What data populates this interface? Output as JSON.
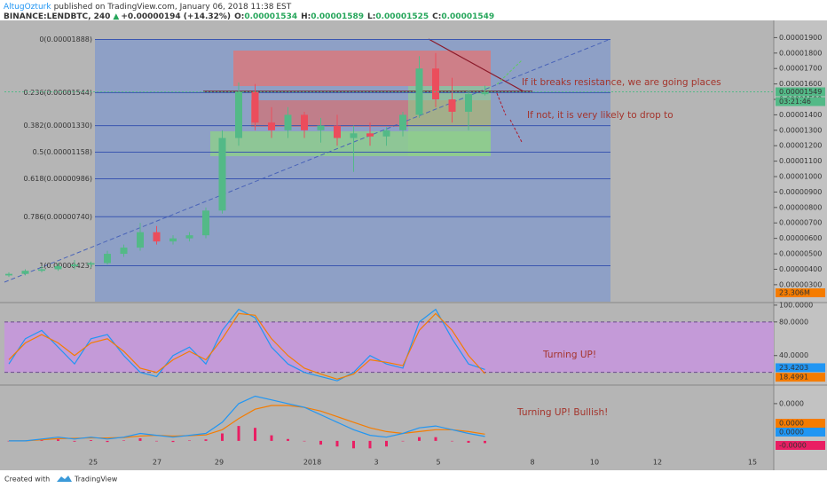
{
  "header": {
    "author": "AltugOzturk",
    "published": "published on TradingView.com, January 06, 2018 11:38 EST",
    "symbol": "BINANCE:LENDBTC, 240",
    "arrow": "▲",
    "change": "+0.00000194 (+14.32%)",
    "open_label": "O:",
    "open": "0.00001534",
    "high_label": "H:",
    "high": "0.00001589",
    "low_label": "L:",
    "low": "0.00001525",
    "close_label": "C:",
    "close": "0.00001549"
  },
  "chart_data": [
    {
      "type": "candlestick",
      "up_color": "#53b987",
      "down_color": "#eb4d5c",
      "open": [
        3.6e-06,
        3.7e-06,
        3.9e-06,
        4e-06,
        4.2e-06,
        4.3e-06,
        4.4e-06,
        5e-06,
        5.4e-06,
        6.4e-06,
        5.8e-06,
        6e-06,
        6.2e-06,
        7.8e-06,
        1.25e-05,
        1.55e-05,
        1.35e-05,
        1.3e-05,
        1.4e-05,
        1.3e-05,
        1.33e-05,
        1.25e-05,
        1.28e-05,
        1.26e-05,
        1.3e-05,
        1.4e-05,
        1.7e-05,
        1.5e-05,
        1.42e-05,
        1.534e-05
      ],
      "high": [
        3.8e-06,
        4e-06,
        4.2e-06,
        4.4e-06,
        4.6e-06,
        4.5e-06,
        5.2e-06,
        5.6e-06,
        7e-06,
        6.8e-06,
        6.2e-06,
        6.4e-06,
        8e-06,
        1.3e-05,
        1.61e-05,
        1.6e-05,
        1.45e-05,
        1.45e-05,
        1.42e-05,
        1.38e-05,
        1.4e-05,
        1.33e-05,
        1.35e-05,
        1.32e-05,
        1.42e-05,
        1.78e-05,
        1.8e-05,
        1.64e-05,
        1.56e-05,
        1.589e-05
      ],
      "low": [
        3.5e-06,
        3.6e-06,
        3.8e-06,
        3.9e-06,
        4e-06,
        4.1e-06,
        4.3e-06,
        4.8e-06,
        5.2e-06,
        5.6e-06,
        5.6e-06,
        5.8e-06,
        6e-06,
        7.6e-06,
        1.2e-05,
        1.3e-05,
        1.25e-05,
        1.25e-05,
        1.25e-05,
        1.22e-05,
        1.2e-05,
        1.03e-05,
        1.2e-05,
        1.2e-05,
        1.26e-05,
        1.38e-05,
        1.45e-05,
        1.35e-05,
        1.3e-05,
        1.525e-05
      ],
      "close": [
        3.7e-06,
        3.9e-06,
        4e-06,
        4.2e-06,
        4.3e-06,
        4.4e-06,
        5e-06,
        5.4e-06,
        6.4e-06,
        5.8e-06,
        6e-06,
        6.2e-06,
        7.8e-06,
        1.25e-05,
        1.55e-05,
        1.35e-05,
        1.3e-05,
        1.4e-05,
        1.3e-05,
        1.33e-05,
        1.25e-05,
        1.28e-05,
        1.26e-05,
        1.3e-05,
        1.4e-05,
        1.7e-05,
        1.5e-05,
        1.42e-05,
        1.534e-05,
        1.549e-05
      ],
      "ylim": [
        1.9e-06,
        2e-05
      ],
      "yticks": [
        {
          "value": 1.9e-05,
          "label": "0.00001900"
        },
        {
          "value": 1.8e-05,
          "label": "0.00001800"
        },
        {
          "value": 1.7e-05,
          "label": "0.00001700"
        },
        {
          "value": 1.6e-05,
          "label": "0.00001600"
        },
        {
          "value": 1.5e-05,
          "label": "0.00001500"
        },
        {
          "value": 1.4e-05,
          "label": "0.00001400"
        },
        {
          "value": 1.3e-05,
          "label": "0.00001300"
        },
        {
          "value": 1.2e-05,
          "label": "0.00001200"
        },
        {
          "value": 1.1e-05,
          "label": "0.00001100"
        },
        {
          "value": 1e-05,
          "label": "0.00001000"
        },
        {
          "value": 9e-06,
          "label": "0.00000900"
        },
        {
          "value": 8e-06,
          "label": "0.00000800"
        },
        {
          "value": 7e-06,
          "label": "0.00000700"
        },
        {
          "value": 6e-06,
          "label": "0.00000600"
        },
        {
          "value": 5e-06,
          "label": "0.00000500"
        },
        {
          "value": 4e-06,
          "label": "0.00000400"
        },
        {
          "value": 3e-06,
          "label": "0.00000300"
        }
      ],
      "fib_levels": [
        {
          "value": 1.888e-05,
          "label": "0(0.00001888)"
        },
        {
          "value": 1.544e-05,
          "label": "0.236(0.00001544)"
        },
        {
          "value": 1.33e-05,
          "label": "0.382(0.00001330)"
        },
        {
          "value": 1.158e-05,
          "label": "0.5(0.00001158)"
        },
        {
          "value": 9.86e-06,
          "label": "0.618(0.00000986)"
        },
        {
          "value": 7.4e-06,
          "label": "0.786(0.00000740)"
        },
        {
          "value": 4.23e-06,
          "label": "1(0.00000423)"
        }
      ],
      "last_price": {
        "value": 1.549e-05,
        "label": "0.00001549"
      },
      "countdown": "03:21:46",
      "volume_label": "23.306M",
      "annotations": [
        "If it breaks resistance, we are going places",
        "If not, it is very likely to drop to"
      ]
    },
    {
      "type": "stochastic",
      "ylim": [
        7,
        102
      ],
      "band": [
        20,
        80
      ],
      "yticks": [
        {
          "value": 100,
          "label": "100.0000"
        },
        {
          "value": 80,
          "label": "80.0000"
        },
        {
          "value": 40,
          "label": "40.0000"
        }
      ],
      "series": [
        {
          "color": "#2196f3",
          "values": [
            30,
            60,
            70,
            50,
            30,
            60,
            65,
            40,
            20,
            15,
            40,
            50,
            30,
            70,
            95,
            85,
            50,
            30,
            20,
            15,
            10,
            20,
            40,
            30,
            25,
            80,
            95,
            60,
            30,
            23.4203
          ]
        },
        {
          "color": "#f57c00",
          "values": [
            35,
            55,
            65,
            55,
            40,
            55,
            60,
            45,
            25,
            20,
            35,
            45,
            35,
            60,
            90,
            88,
            60,
            40,
            25,
            18,
            12,
            18,
            35,
            32,
            28,
            70,
            90,
            70,
            40,
            18.4991
          ]
        }
      ],
      "annotations": [
        "Turning UP!"
      ]
    },
    {
      "type": "macd",
      "ylim": [
        -5.5e-07,
        1.45e-06
      ],
      "yticks": [
        {
          "value": 1e-06,
          "label": "0.0000"
        }
      ],
      "series": [
        {
          "color": "#f57c00",
          "values": [
            0,
            0,
            3e-08,
            6e-08,
            7e-08,
            8e-08,
            8e-08,
            9e-08,
            1.3e-07,
            1.5e-07,
            1.3e-07,
            1.4e-07,
            1.6e-07,
            3e-07,
            6e-07,
            8.5e-07,
            9.5e-07,
            9.5e-07,
            9e-07,
            8e-07,
            6.5e-07,
            5e-07,
            3.5e-07,
            2.5e-07,
            2e-07,
            2.5e-07,
            3e-07,
            3e-07,
            2.5e-07,
            1.8e-07
          ],
          "value_labels": [
            null,
            null,
            null,
            null,
            null,
            null,
            null,
            null,
            null,
            null,
            null,
            null,
            null,
            null,
            null,
            null,
            null,
            null,
            null,
            null,
            null,
            null,
            null,
            null,
            null,
            null,
            null,
            null,
            null,
            "0.0000"
          ]
        },
        {
          "color": "#2196f3",
          "values": [
            0,
            0,
            5e-08,
            1e-07,
            5e-08,
            1e-07,
            5e-08,
            1e-07,
            2e-07,
            1.5e-07,
            1e-07,
            1.5e-07,
            2e-07,
            5e-07,
            1e-06,
            1.2e-06,
            1.1e-06,
            1e-06,
            9e-07,
            7e-07,
            5e-07,
            3e-07,
            1.5e-07,
            1e-07,
            2e-07,
            3.5e-07,
            4e-07,
            3e-07,
            2e-07,
            1.2e-07
          ],
          "value_labels": [
            null,
            null,
            null,
            null,
            null,
            null,
            null,
            null,
            null,
            null,
            null,
            null,
            null,
            null,
            null,
            null,
            null,
            null,
            null,
            null,
            null,
            null,
            null,
            null,
            null,
            null,
            null,
            null,
            null,
            "0.0000"
          ]
        },
        {
          "color": "#e91e63",
          "values": [
            0,
            0,
            2e-08,
            4e-08,
            -2e-08,
            2e-08,
            -3e-08,
            1e-08,
            7e-08,
            0,
            -3e-08,
            1e-08,
            4e-08,
            2e-07,
            4e-07,
            3.5e-07,
            1.5e-07,
            5e-08,
            0,
            -1e-07,
            -1.5e-07,
            -2e-07,
            -2e-07,
            -1.5e-07,
            0,
            1e-07,
            1e-07,
            0,
            -5e-08,
            -6e-08
          ],
          "value_labels": [
            null,
            null,
            null,
            null,
            null,
            null,
            null,
            null,
            null,
            null,
            null,
            null,
            null,
            null,
            null,
            null,
            null,
            null,
            null,
            null,
            null,
            null,
            null,
            null,
            null,
            null,
            null,
            null,
            null,
            "-0.0000"
          ]
        }
      ],
      "annotations": [
        "Turning UP! Bullish!"
      ]
    }
  ],
  "time_axis": {
    "labels": [
      "25",
      "27",
      "29",
      "2018",
      "3",
      "5",
      "8",
      "10",
      "12",
      "15"
    ]
  },
  "footer": {
    "created": "Created with",
    "brand": "TradingView"
  }
}
